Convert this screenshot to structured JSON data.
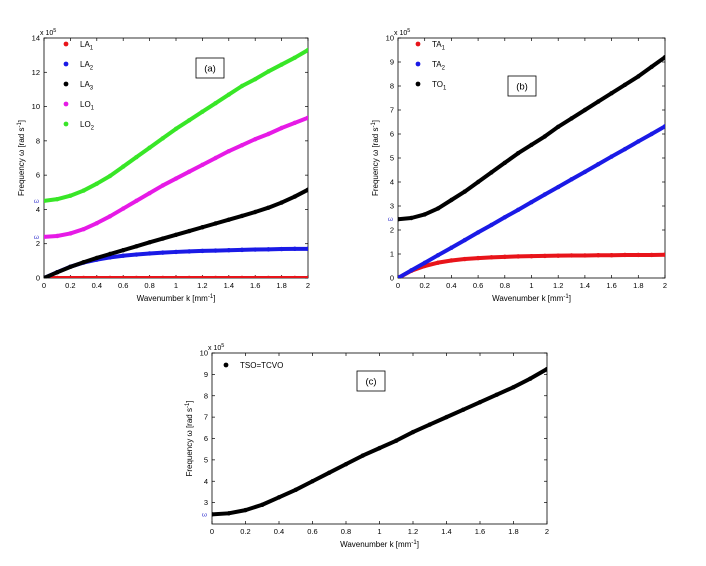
{
  "chart_data": [
    {
      "type": "scatter",
      "panel_label": "(a)",
      "xlabel": "Wavenumber k [mm",
      "xlabel_sup": "-1",
      "xlabel_end": "]",
      "ylabel": "Frequency  ω [rad s",
      "ylabel_sup": "-1",
      "ylabel_end": "]",
      "xlim": [
        0,
        2
      ],
      "ylim": [
        0,
        14
      ],
      "xticks": [
        "0",
        "0.2",
        "0.4",
        "0.6",
        "0.8",
        "1",
        "1.2",
        "1.4",
        "1.6",
        "1.8",
        "2"
      ],
      "yticks": [
        "0",
        "2",
        "4",
        "6",
        "8",
        "10",
        "12",
        "14"
      ],
      "y_multiplier": "x 10",
      "y_multiplier_exp": "5",
      "y_axis_markers": [
        {
          "text": "ω",
          "y": 4.5
        },
        {
          "text": "ω",
          "y": 2.4
        }
      ],
      "legend_position": "top-left",
      "x": [
        0,
        0.1,
        0.2,
        0.3,
        0.4,
        0.5,
        0.6,
        0.7,
        0.8,
        0.9,
        1.0,
        1.1,
        1.2,
        1.3,
        1.4,
        1.5,
        1.6,
        1.7,
        1.8,
        1.9,
        2.0
      ],
      "series": [
        {
          "name": "LA",
          "sub": "1",
          "color": "#e8141a",
          "values": [
            0,
            0,
            0,
            0,
            0,
            0,
            0,
            0,
            0,
            0,
            0,
            0,
            0,
            0,
            0,
            0,
            0,
            0,
            0,
            0,
            0
          ]
        },
        {
          "name": "LA",
          "sub": "2",
          "color": "#1a1ae6",
          "values": [
            0,
            0.34,
            0.66,
            0.9,
            1.07,
            1.2,
            1.3,
            1.37,
            1.43,
            1.48,
            1.52,
            1.55,
            1.58,
            1.6,
            1.62,
            1.64,
            1.66,
            1.67,
            1.69,
            1.7,
            1.7
          ]
        },
        {
          "name": "LA",
          "sub": "3",
          "color": "#000000",
          "values": [
            0,
            0.33,
            0.65,
            0.92,
            1.17,
            1.4,
            1.62,
            1.85,
            2.08,
            2.3,
            2.52,
            2.74,
            2.96,
            3.18,
            3.4,
            3.62,
            3.85,
            4.1,
            4.4,
            4.75,
            5.15
          ]
        },
        {
          "name": "LO",
          "sub": "1",
          "color": "#e61ae6",
          "values": [
            2.4,
            2.45,
            2.6,
            2.85,
            3.2,
            3.6,
            4.05,
            4.5,
            4.95,
            5.4,
            5.8,
            6.2,
            6.6,
            7.0,
            7.4,
            7.75,
            8.1,
            8.4,
            8.75,
            9.05,
            9.35
          ]
        },
        {
          "name": "LO",
          "sub": "2",
          "color": "#38e627",
          "values": [
            4.5,
            4.6,
            4.8,
            5.1,
            5.5,
            5.95,
            6.5,
            7.05,
            7.6,
            8.15,
            8.7,
            9.2,
            9.7,
            10.2,
            10.7,
            11.2,
            11.6,
            12.05,
            12.45,
            12.85,
            13.3
          ]
        }
      ]
    },
    {
      "type": "scatter",
      "panel_label": "(b)",
      "xlabel": "Wavenumber k [mm",
      "xlabel_sup": "-1",
      "xlabel_end": "]",
      "ylabel": "Frequency  ω [rad s",
      "ylabel_sup": "-1",
      "ylabel_end": "]",
      "xlim": [
        0,
        2
      ],
      "ylim": [
        0,
        10
      ],
      "xticks": [
        "0",
        "0.2",
        "0.4",
        "0.6",
        "0.8",
        "1",
        "1.2",
        "1.4",
        "1.6",
        "1.8",
        "2"
      ],
      "yticks": [
        "0",
        "1",
        "2",
        "3",
        "4",
        "5",
        "6",
        "7",
        "8",
        "9",
        "10"
      ],
      "y_multiplier": "x 10",
      "y_multiplier_exp": "5",
      "y_axis_markers": [
        {
          "text": "ω",
          "y": 2.45
        }
      ],
      "legend_position": "top-left",
      "x": [
        0,
        0.1,
        0.2,
        0.3,
        0.4,
        0.5,
        0.6,
        0.7,
        0.8,
        0.9,
        1.0,
        1.1,
        1.2,
        1.3,
        1.4,
        1.5,
        1.6,
        1.7,
        1.8,
        1.9,
        2.0
      ],
      "series": [
        {
          "name": "TA",
          "sub": "1",
          "color": "#e8141a",
          "values": [
            0,
            0.3,
            0.5,
            0.64,
            0.73,
            0.79,
            0.83,
            0.86,
            0.88,
            0.9,
            0.91,
            0.92,
            0.93,
            0.94,
            0.94,
            0.95,
            0.95,
            0.96,
            0.96,
            0.96,
            0.97
          ]
        },
        {
          "name": "TA",
          "sub": "2",
          "color": "#1a1ae6",
          "values": [
            0,
            0.32,
            0.63,
            0.95,
            1.26,
            1.58,
            1.9,
            2.21,
            2.53,
            2.84,
            3.16,
            3.48,
            3.79,
            4.11,
            4.42,
            4.74,
            5.06,
            5.37,
            5.69,
            6.0,
            6.32
          ]
        },
        {
          "name": "TO",
          "sub": "1",
          "color": "#000000",
          "values": [
            2.45,
            2.5,
            2.65,
            2.9,
            3.25,
            3.6,
            4.0,
            4.4,
            4.8,
            5.2,
            5.55,
            5.9,
            6.3,
            6.65,
            7.0,
            7.35,
            7.7,
            8.05,
            8.4,
            8.8,
            9.2
          ]
        }
      ]
    },
    {
      "type": "scatter",
      "panel_label": "(c)",
      "xlabel": "Wavenumber k [mm",
      "xlabel_sup": "-1",
      "xlabel_end": "]",
      "ylabel": "Frequency  ω [rad s",
      "ylabel_sup": "-1",
      "ylabel_end": "]",
      "xlim": [
        0,
        2
      ],
      "ylim": [
        2,
        10
      ],
      "xticks": [
        "0",
        "0.2",
        "0.4",
        "0.6",
        "0.8",
        "1",
        "1.2",
        "1.4",
        "1.6",
        "1.8",
        "2"
      ],
      "yticks": [
        "3",
        "4",
        "5",
        "6",
        "7",
        "8",
        "9",
        "10"
      ],
      "y_multiplier": "x 10",
      "y_multiplier_exp": "5",
      "y_axis_markers": [
        {
          "text": "ω",
          "y": 2.45
        }
      ],
      "legend_position": "top-left",
      "x": [
        0,
        0.1,
        0.2,
        0.3,
        0.4,
        0.5,
        0.6,
        0.7,
        0.8,
        0.9,
        1.0,
        1.1,
        1.2,
        1.3,
        1.4,
        1.5,
        1.6,
        1.7,
        1.8,
        1.9,
        2.0
      ],
      "series": [
        {
          "name": "TSO=TCVO",
          "sub": "",
          "color": "#000000",
          "values": [
            2.45,
            2.5,
            2.65,
            2.9,
            3.25,
            3.6,
            4.0,
            4.4,
            4.8,
            5.2,
            5.55,
            5.9,
            6.3,
            6.65,
            7.0,
            7.35,
            7.7,
            8.05,
            8.4,
            8.8,
            9.25
          ]
        }
      ]
    }
  ]
}
